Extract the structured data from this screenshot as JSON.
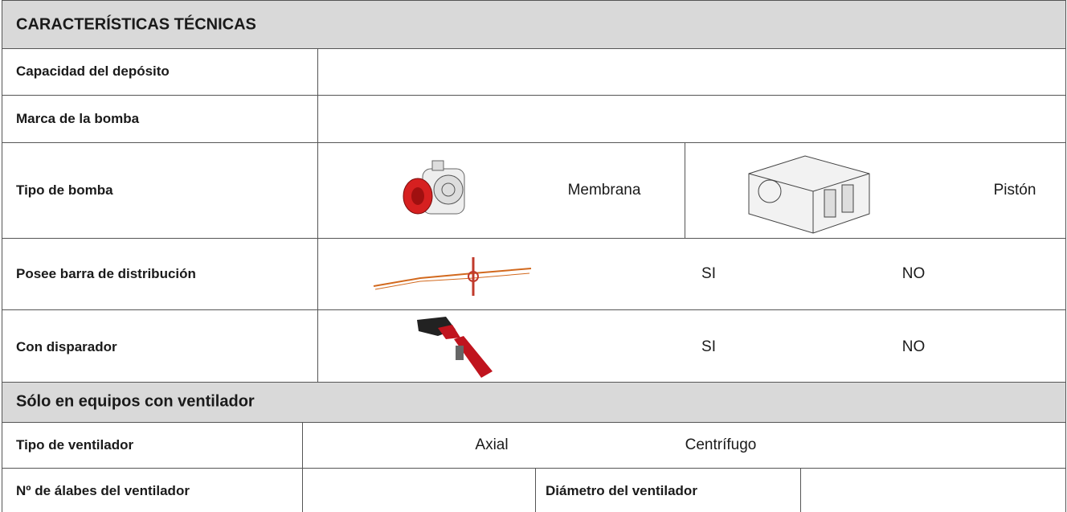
{
  "header": {
    "title": "CARACTERÍSTICAS TÉCNICAS"
  },
  "table": {
    "rows": [
      [
        "Capacidad del depósito"
      ],
      [
        "Marca de la bomba"
      ],
      [
        "Tipo de bomba",
        "Membrana",
        "Pistón"
      ],
      [
        "Posee barra de distribución",
        "SI",
        "NO"
      ],
      [
        "Con disparador",
        "SI",
        "NO"
      ]
    ]
  },
  "section": {
    "title": "Sólo en equipos con ventilador"
  },
  "fan_table": {
    "rows": [
      [
        "Tipo de ventilador",
        "Axial",
        "Centrífugo"
      ],
      [
        "Nº de álabes del ventilador",
        "Diámetro del ventilador"
      ]
    ]
  }
}
